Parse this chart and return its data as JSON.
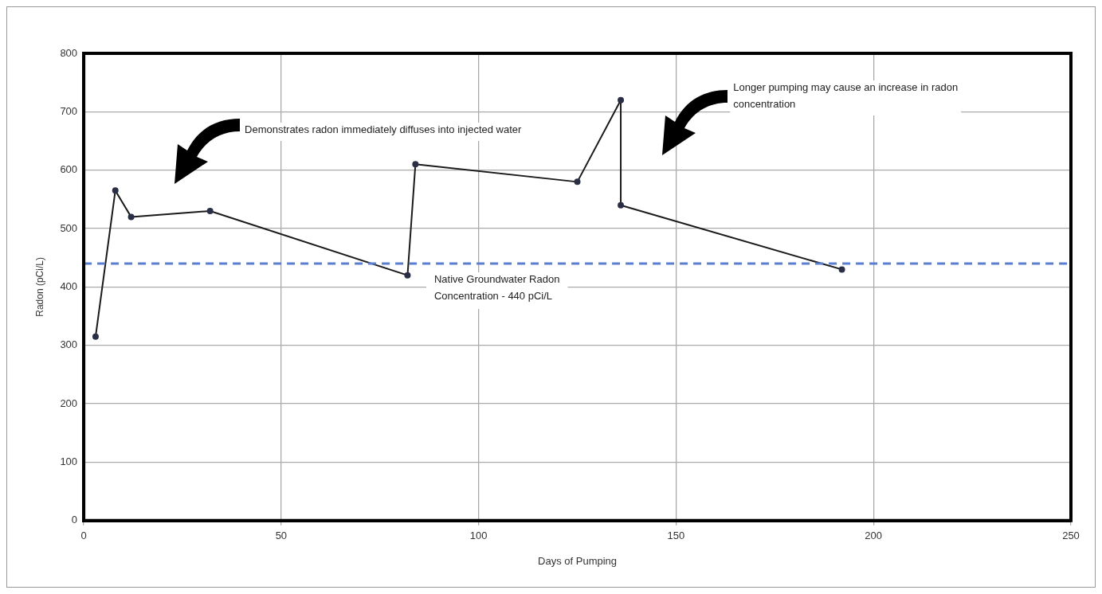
{
  "chart_data": {
    "type": "line",
    "xlabel": "Days of Pumping",
    "ylabel": "Radon (pCi/L)",
    "x": [
      3,
      8,
      12,
      32,
      82,
      84,
      125,
      136,
      136,
      192
    ],
    "series": [
      {
        "color": "#1a1a1a",
        "values": [
          315,
          565,
          520,
          530,
          420,
          610,
          580,
          720,
          540,
          430
        ]
      }
    ],
    "xlim": [
      0,
      250
    ],
    "xticks": [
      0,
      50,
      100,
      150,
      200,
      250
    ],
    "ylim": [
      0,
      800
    ],
    "yticks": [
      0,
      100,
      200,
      300,
      400,
      500,
      600,
      700,
      800
    ],
    "grid": true,
    "marker": "circle",
    "line_style": "solid",
    "legend": false,
    "ref_lines": [
      {
        "axis": "y",
        "value": 440,
        "label": "Native Groundwater Radon Concentration - 440 pCi/L",
        "color": "#5b7fcf",
        "line_style": "dashed"
      }
    ],
    "annotations": [
      "Demonstrates radon immediately diffuses into injected water",
      "Longer pumping may cause an increase in radon concentration"
    ]
  }
}
